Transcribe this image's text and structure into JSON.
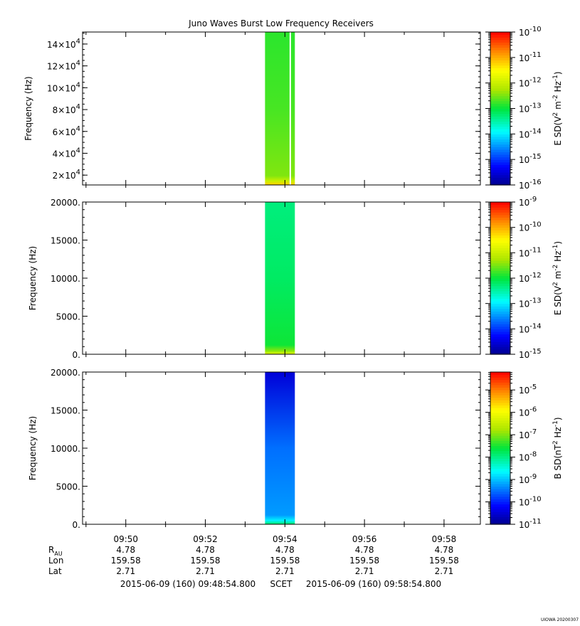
{
  "chart_data": [
    {
      "type": "heatmap",
      "title": "Juno Waves Burst Low Frequency Receivers",
      "ylabel": "Frequency (Hz)",
      "ylim": [
        11000,
        151000
      ],
      "ytick_labels": [
        {
          "v": 20000,
          "m": "2×10",
          "e": "4"
        },
        {
          "v": 40000,
          "m": "4×10",
          "e": "4"
        },
        {
          "v": 60000,
          "m": "6×10",
          "e": "4"
        },
        {
          "v": 80000,
          "m": "8×10",
          "e": "4"
        },
        {
          "v": 100000,
          "m": "10×10",
          "e": "4"
        },
        {
          "v": 120000,
          "m": "12×10",
          "e": "4"
        },
        {
          "v": 140000,
          "m": "14×10",
          "e": "4"
        }
      ],
      "data_interval": [
        "09:53:30",
        "09:54:15"
      ],
      "data_gap": "09:54:07",
      "colorbar": {
        "label": "E SD(V2 m-2 Hz-1)",
        "label_parts": [
          [
            "E SD(V",
            ""
          ],
          [
            "2",
            "sup"
          ],
          [
            " m",
            ""
          ],
          [
            "-2",
            "sup"
          ],
          [
            " Hz",
            ""
          ],
          [
            "-1",
            "sup"
          ],
          [
            ")",
            ""
          ]
        ],
        "log_range": [
          -16,
          -10
        ],
        "tick_labels": [
          {
            "m": "10",
            "e": "-16"
          },
          {
            "m": "10",
            "e": "-15"
          },
          {
            "m": "10",
            "e": "-14"
          },
          {
            "m": "10",
            "e": "-13"
          },
          {
            "m": "10",
            "e": "-12"
          },
          {
            "m": "10",
            "e": "-11"
          },
          {
            "m": "10",
            "e": "-10"
          }
        ]
      },
      "fill_level": 0.55
    },
    {
      "type": "heatmap",
      "ylabel": "Frequency (Hz)",
      "ylim": [
        0,
        20000
      ],
      "ytick_labels": [
        {
          "v": 0,
          "m": "0.",
          "e": ""
        },
        {
          "v": 5000,
          "m": "5000.",
          "e": ""
        },
        {
          "v": 10000,
          "m": "10000.",
          "e": ""
        },
        {
          "v": 15000,
          "m": "15000.",
          "e": ""
        },
        {
          "v": 20000,
          "m": "20000.",
          "e": ""
        }
      ],
      "data_interval": [
        "09:53:30",
        "09:54:15"
      ],
      "colorbar": {
        "label": "E SD(V2 m-2 Hz-1)",
        "label_parts": [
          [
            "E SD(V",
            ""
          ],
          [
            "2",
            "sup"
          ],
          [
            " m",
            ""
          ],
          [
            "-2",
            "sup"
          ],
          [
            " Hz",
            ""
          ],
          [
            "-1",
            "sup"
          ],
          [
            ")",
            ""
          ]
        ],
        "log_range": [
          -15,
          -9
        ],
        "tick_labels": [
          {
            "m": "10",
            "e": "-15"
          },
          {
            "m": "10",
            "e": "-14"
          },
          {
            "m": "10",
            "e": "-13"
          },
          {
            "m": "10",
            "e": "-12"
          },
          {
            "m": "10",
            "e": "-11"
          },
          {
            "m": "10",
            "e": "-10"
          },
          {
            "m": "10",
            "e": "-9"
          }
        ]
      },
      "fill_level": 0.47
    },
    {
      "type": "heatmap",
      "ylabel": "Frequency (Hz)",
      "ylim": [
        0,
        20000
      ],
      "ytick_labels": [
        {
          "v": 0,
          "m": "0.",
          "e": ""
        },
        {
          "v": 5000,
          "m": "5000.",
          "e": ""
        },
        {
          "v": 10000,
          "m": "10000.",
          "e": ""
        },
        {
          "v": 15000,
          "m": "15000.",
          "e": ""
        },
        {
          "v": 20000,
          "m": "20000.",
          "e": ""
        }
      ],
      "data_interval": [
        "09:53:30",
        "09:54:15"
      ],
      "colorbar": {
        "label": "B SD(nT2 Hz-1)",
        "label_parts": [
          [
            "B SD(nT",
            ""
          ],
          [
            "2",
            "sup"
          ],
          [
            " Hz",
            ""
          ],
          [
            "-1",
            "sup"
          ],
          [
            ")",
            ""
          ]
        ],
        "log_range": [
          -11,
          -4.2
        ],
        "tick_labels": [
          {
            "m": "10",
            "e": "-11"
          },
          {
            "m": "10",
            "e": "-10"
          },
          {
            "m": "10",
            "e": "-9"
          },
          {
            "m": "10",
            "e": "-8"
          },
          {
            "m": "10",
            "e": "-7"
          },
          {
            "m": "10",
            "e": "-6"
          },
          {
            "m": "10",
            "e": "-5"
          }
        ]
      },
      "fill_level": 0.22
    }
  ],
  "time_axis": {
    "range": [
      "09:48:54.800",
      "09:58:54.800"
    ],
    "ticks": [
      "09:50",
      "09:52",
      "09:54",
      "09:56",
      "09:58"
    ],
    "ephemeris": [
      {
        "label": "R",
        "sub": "AU",
        "values": [
          "4.78",
          "4.78",
          "4.78",
          "4.78",
          "4.78"
        ]
      },
      {
        "label": "Lon",
        "sub": "",
        "values": [
          "159.58",
          "159.58",
          "159.58",
          "159.58",
          "159.58"
        ]
      },
      {
        "label": "Lat",
        "sub": "",
        "values": [
          "2.71",
          "2.71",
          "2.71",
          "2.71",
          "2.71"
        ]
      }
    ],
    "start_label": "2015-06-09 (160) 09:48:54.800",
    "frame_label": "SCET",
    "end_label": "2015-06-09 (160) 09:58:54.800"
  },
  "footer_stamp": "UIOWA 20200307"
}
